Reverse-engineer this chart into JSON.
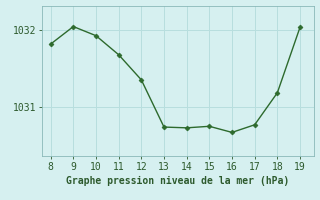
{
  "x": [
    8,
    9,
    10,
    11,
    12,
    13,
    14,
    15,
    16,
    17,
    18,
    19
  ],
  "y": [
    1031.82,
    1032.05,
    1031.93,
    1031.68,
    1031.35,
    1030.73,
    1030.72,
    1030.74,
    1030.66,
    1030.76,
    1031.18,
    1032.04
  ],
  "xlim": [
    7.6,
    19.6
  ],
  "ylim": [
    1030.35,
    1032.32
  ],
  "yticks": [
    1031,
    1032
  ],
  "xticks": [
    8,
    9,
    10,
    11,
    12,
    13,
    14,
    15,
    16,
    17,
    18,
    19
  ],
  "line_color": "#2d6a2d",
  "marker": "D",
  "marker_size": 2.5,
  "bg_color": "#d6f0f0",
  "grid_color": "#b8dede",
  "xlabel": "Graphe pression niveau de la mer (hPa)",
  "xlabel_color": "#2d5a2d",
  "tick_color": "#2d5a2d",
  "axis_color": "#8ab8b8",
  "label_fontsize": 7,
  "tick_fontsize": 7
}
